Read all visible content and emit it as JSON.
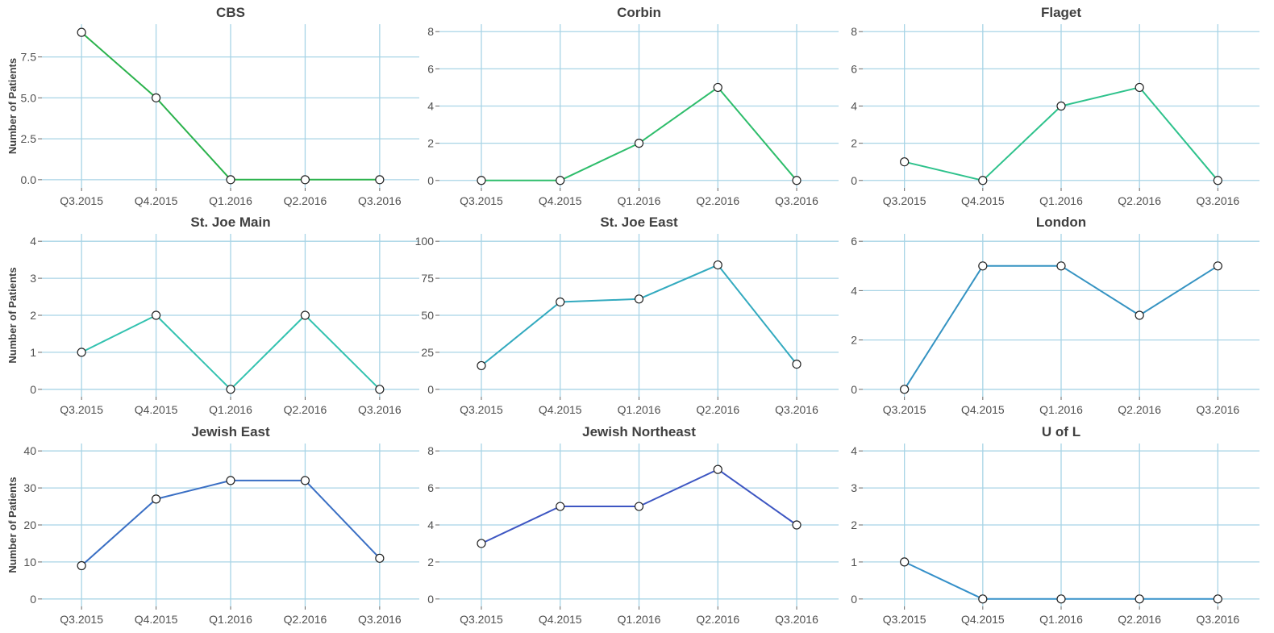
{
  "chart_data": [
    {
      "type": "line",
      "title": "CBS",
      "ylabel": "Number of Patients",
      "categories": [
        "Q3.2015",
        "Q4.2015",
        "Q1.2016",
        "Q2.2016",
        "Q3.2016"
      ],
      "values": [
        9,
        5,
        0,
        0,
        0
      ],
      "ylim": [
        -0.5,
        9.5
      ],
      "yticks": [
        0,
        2.5,
        5,
        7.5
      ],
      "ytick_labels": [
        "0.0",
        "2.5",
        "5.0",
        "7.5"
      ],
      "color": "#2bb24c",
      "grid": true
    },
    {
      "type": "line",
      "title": "Corbin",
      "ylabel": "",
      "categories": [
        "Q3.2015",
        "Q4.2015",
        "Q1.2016",
        "Q2.2016",
        "Q3.2016"
      ],
      "values": [
        0,
        0,
        2,
        5,
        0
      ],
      "ylim": [
        -0.4,
        8.4
      ],
      "yticks": [
        0,
        2,
        4,
        6,
        8
      ],
      "ytick_labels": [
        "0",
        "2",
        "4",
        "6",
        "8"
      ],
      "color": "#2ebd6b",
      "grid": true
    },
    {
      "type": "line",
      "title": "Flaget",
      "ylabel": "",
      "categories": [
        "Q3.2015",
        "Q4.2015",
        "Q1.2016",
        "Q2.2016",
        "Q3.2016"
      ],
      "values": [
        1,
        0,
        4,
        5,
        0
      ],
      "ylim": [
        -0.4,
        8.4
      ],
      "yticks": [
        0,
        2,
        4,
        6,
        8
      ],
      "ytick_labels": [
        "0",
        "2",
        "4",
        "6",
        "8"
      ],
      "color": "#2ec28c",
      "grid": true
    },
    {
      "type": "line",
      "title": "St. Joe Main",
      "ylabel": "Number of Patients",
      "categories": [
        "Q3.2015",
        "Q4.2015",
        "Q1.2016",
        "Q2.2016",
        "Q3.2016"
      ],
      "values": [
        1,
        2,
        0,
        2,
        0
      ],
      "ylim": [
        -0.2,
        4.2
      ],
      "yticks": [
        0,
        1,
        2,
        3,
        4
      ],
      "ytick_labels": [
        "0",
        "1",
        "2",
        "3",
        "4"
      ],
      "color": "#33c2b0",
      "grid": true
    },
    {
      "type": "line",
      "title": "St. Joe East",
      "ylabel": "",
      "categories": [
        "Q3.2015",
        "Q4.2015",
        "Q1.2016",
        "Q2.2016",
        "Q3.2016"
      ],
      "values": [
        16,
        59,
        61,
        84,
        17
      ],
      "ylim": [
        -5,
        105
      ],
      "yticks": [
        0,
        25,
        50,
        75,
        100
      ],
      "ytick_labels": [
        "0",
        "25",
        "50",
        "75",
        "100"
      ],
      "color": "#33aabf",
      "grid": true
    },
    {
      "type": "line",
      "title": "London",
      "ylabel": "",
      "categories": [
        "Q3.2015",
        "Q4.2015",
        "Q1.2016",
        "Q2.2016",
        "Q3.2016"
      ],
      "values": [
        0,
        5,
        5,
        3,
        5
      ],
      "ylim": [
        -0.3,
        6.3
      ],
      "yticks": [
        0,
        2,
        4,
        6
      ],
      "ytick_labels": [
        "0",
        "2",
        "4",
        "6"
      ],
      "color": "#3593c2",
      "grid": true
    },
    {
      "type": "line",
      "title": "Jewish East",
      "ylabel": "Number of Patients",
      "categories": [
        "Q3.2015",
        "Q4.2015",
        "Q1.2016",
        "Q2.2016",
        "Q3.2016"
      ],
      "values": [
        9,
        27,
        32,
        32,
        11
      ],
      "ylim": [
        -2,
        42
      ],
      "yticks": [
        0,
        10,
        20,
        30,
        40
      ],
      "ytick_labels": [
        "0",
        "10",
        "20",
        "30",
        "40"
      ],
      "color": "#3a6fc4",
      "grid": true
    },
    {
      "type": "line",
      "title": "Jewish Northeast",
      "ylabel": "",
      "categories": [
        "Q3.2015",
        "Q4.2015",
        "Q1.2016",
        "Q2.2016",
        "Q3.2016"
      ],
      "values": [
        3,
        5,
        5,
        7,
        4
      ],
      "ylim": [
        -0.4,
        8.4
      ],
      "yticks": [
        0,
        2,
        4,
        6,
        8
      ],
      "ytick_labels": [
        "0",
        "2",
        "4",
        "6",
        "8"
      ],
      "color": "#3d56c2",
      "grid": true
    },
    {
      "type": "line",
      "title": "U of L",
      "ylabel": "",
      "categories": [
        "Q3.2015",
        "Q4.2015",
        "Q1.2016",
        "Q2.2016",
        "Q3.2016"
      ],
      "values": [
        1,
        0,
        0,
        0,
        0
      ],
      "ylim": [
        -0.2,
        4.2
      ],
      "yticks": [
        0,
        1,
        2,
        3,
        4
      ],
      "ytick_labels": [
        "0",
        "1",
        "2",
        "3",
        "4"
      ],
      "color": "#3590c9",
      "grid": true
    }
  ]
}
